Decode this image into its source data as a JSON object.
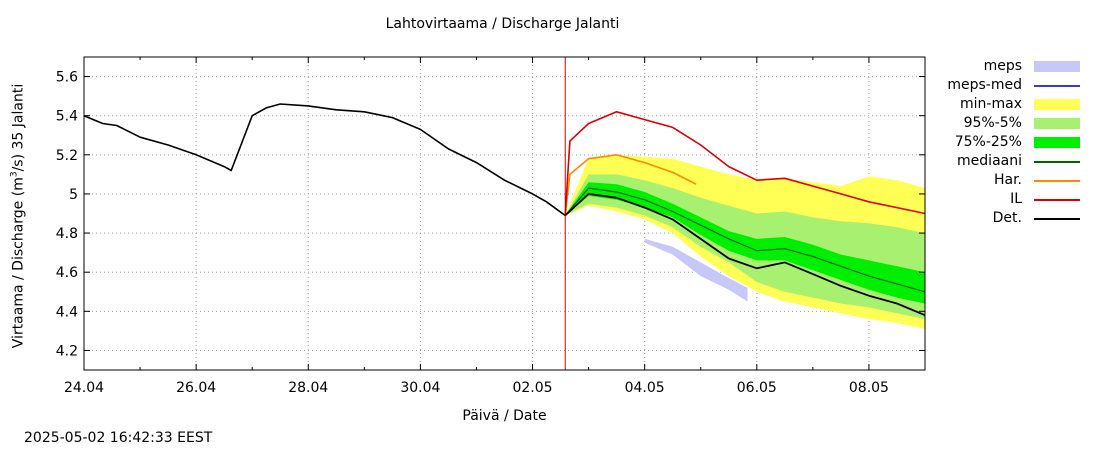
{
  "title": "Lahtovirtaama / Discharge  Jalanti",
  "xlabel": "Päivä / Date",
  "ylabel_main": "Virtaama / Discharge (m",
  "ylabel_sup": "3",
  "ylabel_tail": "/s)  35 Jalanti",
  "timestamp": "2025-05-02 16:42:33 EEST",
  "legend": [
    {
      "label": "meps",
      "color": "#c8c8f8",
      "kind": "band"
    },
    {
      "label": "meps-med",
      "color": "#3a3ad0",
      "kind": "line"
    },
    {
      "label": "min-max",
      "color": "#ffff55",
      "kind": "band"
    },
    {
      "label": "95%-5%",
      "color": "#a8f070",
      "kind": "band"
    },
    {
      "label": "75%-25%",
      "color": "#00ee00",
      "kind": "band"
    },
    {
      "label": "mediaani",
      "color": "#006400",
      "kind": "line"
    },
    {
      "label": "Har.",
      "color": "#ff8800",
      "kind": "line"
    },
    {
      "label": "IL",
      "color": "#dd0000",
      "kind": "line"
    },
    {
      "label": "Det.",
      "color": "#000000",
      "kind": "line"
    }
  ],
  "chart_data": {
    "type": "line",
    "x_unit": "day",
    "xlim": [
      "2025-04-24",
      "2025-05-09"
    ],
    "ylim": [
      4.1,
      5.7
    ],
    "x_ticks": [
      "24.04",
      "26.04",
      "28.04",
      "30.04",
      "02.05",
      "04.05",
      "06.05",
      "08.05"
    ],
    "y_ticks": [
      "4.2",
      "4.4",
      "4.6",
      "4.8",
      "5",
      "5.2",
      "5.4",
      "5.6"
    ],
    "grid": true,
    "legend_position": "right",
    "forecast_start": "2025-05-02 14:00",
    "observed_det": {
      "x": [
        "2025-04-24",
        "2025-04-24 08:00",
        "2025-04-24 14:00",
        "2025-04-25",
        "2025-04-25 12:00",
        "2025-04-26",
        "2025-04-26 12:00",
        "2025-04-26 15:00",
        "2025-04-27",
        "2025-04-27 06:00",
        "2025-04-27 12:00",
        "2025-04-28",
        "2025-04-28 12:00",
        "2025-04-29",
        "2025-04-29 12:00",
        "2025-04-30",
        "2025-04-30 12:00",
        "2025-05-01",
        "2025-05-01 12:00",
        "2025-05-02",
        "2025-05-02 06:00",
        "2025-05-02 14:00"
      ],
      "y": [
        5.4,
        5.36,
        5.35,
        5.29,
        5.25,
        5.2,
        5.14,
        5.12,
        5.4,
        5.44,
        5.46,
        5.45,
        5.43,
        5.42,
        5.39,
        5.33,
        5.23,
        5.16,
        5.07,
        5.0,
        4.96,
        4.89
      ]
    },
    "band_x": [
      "2025-05-02 14:00",
      "2025-05-03",
      "2025-05-03 12:00",
      "2025-05-04",
      "2025-05-04 12:00",
      "2025-05-05",
      "2025-05-05 12:00",
      "2025-05-06",
      "2025-05-06 12:00",
      "2025-05-07",
      "2025-05-07 12:00",
      "2025-05-08",
      "2025-05-08 12:00",
      "2025-05-09"
    ],
    "min_max": {
      "upper": [
        4.89,
        5.18,
        5.2,
        5.19,
        5.18,
        5.14,
        5.1,
        5.07,
        5.08,
        5.06,
        5.04,
        5.09,
        5.07,
        5.03
      ],
      "lower": [
        4.89,
        4.94,
        4.91,
        4.87,
        4.8,
        4.68,
        4.58,
        4.5,
        4.45,
        4.42,
        4.39,
        4.36,
        4.34,
        4.31
      ]
    },
    "p95_p5": {
      "upper": [
        4.89,
        5.1,
        5.1,
        5.07,
        5.03,
        4.98,
        4.94,
        4.9,
        4.91,
        4.88,
        4.86,
        4.85,
        4.83,
        4.8
      ],
      "lower": [
        4.89,
        4.95,
        4.93,
        4.89,
        4.83,
        4.73,
        4.65,
        4.55,
        4.5,
        4.47,
        4.44,
        4.42,
        4.39,
        4.36
      ]
    },
    "p75_p25": {
      "upper": [
        4.89,
        5.06,
        5.05,
        5.01,
        4.95,
        4.88,
        4.81,
        4.77,
        4.78,
        4.74,
        4.69,
        4.66,
        4.63,
        4.6
      ],
      "lower": [
        4.89,
        4.99,
        4.97,
        4.93,
        4.88,
        4.79,
        4.71,
        4.66,
        4.66,
        4.61,
        4.56,
        4.51,
        4.47,
        4.44
      ]
    },
    "meps": {
      "x": [
        "2025-05-04",
        "2025-05-04 12:00",
        "2025-05-05",
        "2025-05-05 12:00",
        "2025-05-05 20:00"
      ],
      "upper": [
        4.77,
        4.73,
        4.65,
        4.57,
        4.52
      ],
      "lower": [
        4.75,
        4.69,
        4.58,
        4.51,
        4.45
      ]
    },
    "series": [
      {
        "name": "mediaani",
        "x": [
          "2025-05-02 14:00",
          "2025-05-03",
          "2025-05-03 12:00",
          "2025-05-04",
          "2025-05-04 12:00",
          "2025-05-05",
          "2025-05-05 12:00",
          "2025-05-06",
          "2025-05-06 12:00",
          "2025-05-07",
          "2025-05-07 12:00",
          "2025-05-08",
          "2025-05-08 12:00",
          "2025-05-09"
        ],
        "y": [
          4.89,
          5.03,
          5.01,
          4.97,
          4.91,
          4.84,
          4.77,
          4.71,
          4.72,
          4.68,
          4.63,
          4.58,
          4.54,
          4.5
        ]
      },
      {
        "name": "Har.",
        "x": [
          "2025-05-02 14:00",
          "2025-05-02 16:00",
          "2025-05-03",
          "2025-05-03 12:00",
          "2025-05-04",
          "2025-05-04 12:00",
          "2025-05-04 22:00"
        ],
        "y": [
          4.89,
          5.1,
          5.18,
          5.2,
          5.16,
          5.11,
          5.05
        ]
      },
      {
        "name": "IL",
        "x": [
          "2025-05-02 14:00",
          "2025-05-02 16:00",
          "2025-05-03",
          "2025-05-03 12:00",
          "2025-05-04",
          "2025-05-04 12:00",
          "2025-05-05",
          "2025-05-05 12:00",
          "2025-05-06",
          "2025-05-06 12:00",
          "2025-05-07",
          "2025-05-07 12:00",
          "2025-05-08",
          "2025-05-08 12:00",
          "2025-05-09"
        ],
        "y": [
          4.89,
          5.27,
          5.36,
          5.42,
          5.38,
          5.34,
          5.25,
          5.14,
          5.07,
          5.08,
          5.04,
          5.0,
          4.96,
          4.93,
          4.9
        ]
      },
      {
        "name": "Det.",
        "x": [
          "2025-05-02 14:00",
          "2025-05-03",
          "2025-05-03 12:00",
          "2025-05-04",
          "2025-05-04 12:00",
          "2025-05-05",
          "2025-05-05 12:00",
          "2025-05-06",
          "2025-05-06 12:00",
          "2025-05-07",
          "2025-05-07 12:00",
          "2025-05-08",
          "2025-05-08 12:00",
          "2025-05-09"
        ],
        "y": [
          4.89,
          5.0,
          4.98,
          4.93,
          4.87,
          4.77,
          4.67,
          4.62,
          4.65,
          4.59,
          4.53,
          4.48,
          4.44,
          4.38
        ]
      }
    ]
  },
  "colors": {
    "meps": "#c8c8f8",
    "min_max": "#ffff55",
    "p95_p5": "#a8f070",
    "p75_p25": "#00ee00",
    "mediaani": "#006400",
    "har": "#ff8800",
    "il": "#dd0000",
    "det": "#000000",
    "forecast_line": "#cc0000",
    "grid": "#a0a0a0"
  }
}
